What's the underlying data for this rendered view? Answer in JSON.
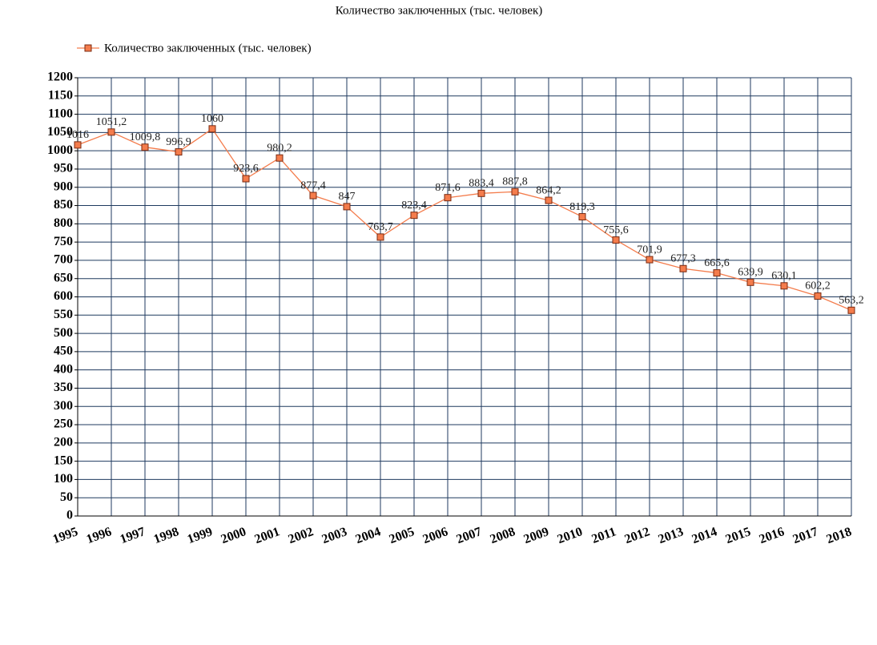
{
  "chart_data": {
    "type": "line",
    "title": "Количество заключенных (тыс. человек)",
    "categories": [
      "1995",
      "1996",
      "1997",
      "1998",
      "1999",
      "2000",
      "2001",
      "2002",
      "2003",
      "2004",
      "2005",
      "2006",
      "2007",
      "2008",
      "2009",
      "2010",
      "2011",
      "2012",
      "2013",
      "2014",
      "2015",
      "2016",
      "2017",
      "2018"
    ],
    "series": [
      {
        "name": "Количество заключенных (тыс. человек)",
        "color": "#f47c4c",
        "values": [
          1016,
          1051.2,
          1009.8,
          996.9,
          1060,
          923.6,
          980.2,
          877.4,
          847,
          763.7,
          823.4,
          871.6,
          883.4,
          887.8,
          864.2,
          819.3,
          755.6,
          701.9,
          677.3,
          665.6,
          639.9,
          630.1,
          602.2,
          563.2
        ],
        "value_labels": [
          "1016",
          "1051,2",
          "1009,8",
          "996,9",
          "1060",
          "923,6",
          "980,2",
          "877,4",
          "847",
          "763,7",
          "823,4",
          "871,6",
          "883,4",
          "887,8",
          "864,2",
          "819,3",
          "755,6",
          "701,9",
          "677,3",
          "665,6",
          "639,9",
          "630,1",
          "602,2",
          "563,2"
        ]
      }
    ],
    "ylim": [
      0,
      1200
    ],
    "yticks": [
      0,
      50,
      100,
      150,
      200,
      250,
      300,
      350,
      400,
      450,
      500,
      550,
      600,
      650,
      700,
      750,
      800,
      850,
      900,
      950,
      1000,
      1050,
      1100,
      1150,
      1200
    ],
    "grid": true
  }
}
